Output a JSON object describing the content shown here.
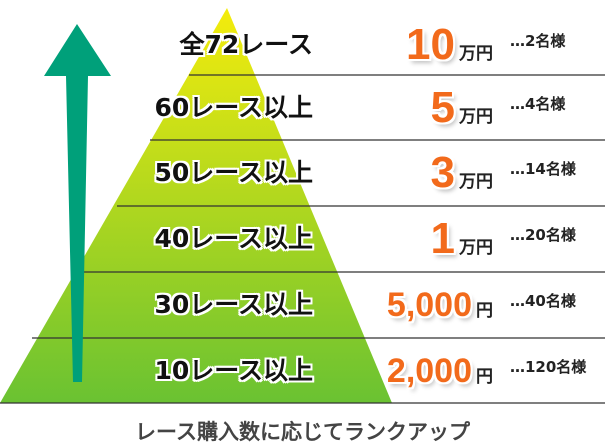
{
  "colors": {
    "pyramid_top": "#f4ec0c",
    "pyramid_bottom": "#6ac232",
    "arrow": "#00a07a",
    "prize": "#f26a1b"
  },
  "rows": [
    {
      "label": "全72レース",
      "amount": "10",
      "unit": "万円",
      "count": "…2名様"
    },
    {
      "label": "60レース以上",
      "amount": "5",
      "unit": "万円",
      "count": "…4名様"
    },
    {
      "label": "50レース以上",
      "amount": "3",
      "unit": "万円",
      "count": "…14名様"
    },
    {
      "label": "40レース以上",
      "amount": "1",
      "unit": "万円",
      "count": "…20名様"
    },
    {
      "label": "30レース以上",
      "amount": "5,000",
      "unit": "円",
      "count": "…40名様"
    },
    {
      "label": "10レース以上",
      "amount": "2,000",
      "unit": "円",
      "count": "…120名様"
    }
  ],
  "caption": "レース購入数に応じてランクアップ",
  "icons": {
    "arrow": "arrow-up-icon"
  }
}
